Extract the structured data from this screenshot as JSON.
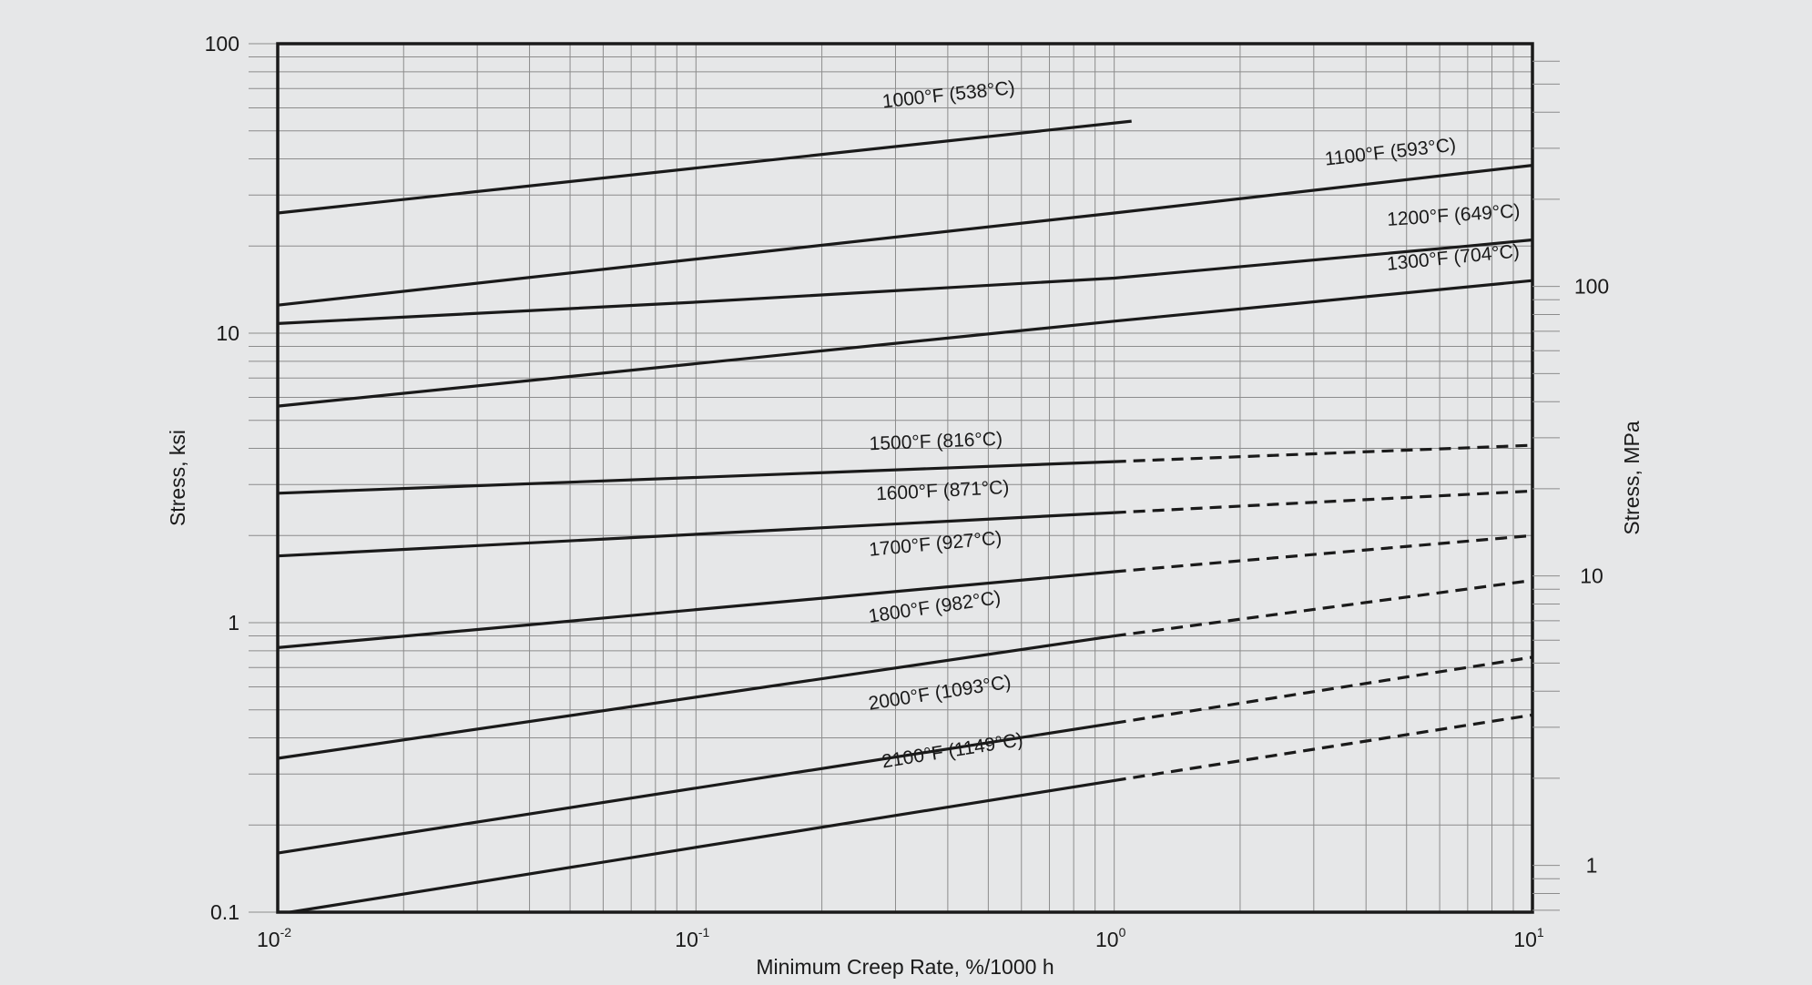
{
  "chart_data": {
    "type": "line",
    "x_scale": "log",
    "y_scale": "log",
    "x_label": "Minimum Creep Rate, %/1000 h",
    "y_label": "Stress, ksi",
    "y2_label": "Stress, MPa",
    "xlim": [
      0.01,
      10
    ],
    "ylim": [
      0.1,
      100
    ],
    "grid": true,
    "legend": "inline labels on lines",
    "x_ticks": [
      {
        "value": 0.01,
        "base": "10",
        "exp": "-2"
      },
      {
        "value": 0.1,
        "base": "10",
        "exp": "-1"
      },
      {
        "value": 1,
        "base": "10",
        "exp": "0"
      },
      {
        "value": 10,
        "base": "10",
        "exp": "1"
      }
    ],
    "y_ticks": [
      {
        "value": 0.1,
        "label": "0.1"
      },
      {
        "value": 1,
        "label": "1"
      },
      {
        "value": 10,
        "label": "10"
      },
      {
        "value": 100,
        "label": "100"
      }
    ],
    "y2_ticks": [
      {
        "value": 1,
        "label": "1"
      },
      {
        "value": 10,
        "label": "10"
      },
      {
        "value": 100,
        "label": "100"
      }
    ],
    "series": [
      {
        "name": "1000°F (538°C)",
        "solid": [
          [
            0.01,
            26
          ],
          [
            1.1,
            54
          ]
        ],
        "dashed": []
      },
      {
        "name": "1100°F (593°C)",
        "solid": [
          [
            0.01,
            12.5
          ],
          [
            1,
            26
          ],
          [
            10,
            38
          ]
        ],
        "dashed": []
      },
      {
        "name": "1200°F (649°C)",
        "solid": [
          [
            0.01,
            10.8
          ],
          [
            0.1,
            12.8
          ],
          [
            1,
            15.5
          ],
          [
            7,
            20
          ],
          [
            10,
            21
          ]
        ],
        "dashed": []
      },
      {
        "name": "1300°F (704°C)",
        "solid": [
          [
            0.01,
            5.6
          ],
          [
            1,
            11
          ],
          [
            10,
            15.2
          ]
        ],
        "dashed": []
      },
      {
        "name": "1500°F (816°C)",
        "solid": [
          [
            0.01,
            2.8
          ],
          [
            1,
            3.6
          ]
        ],
        "dashed": [
          [
            1,
            3.6
          ],
          [
            10,
            4.1
          ]
        ]
      },
      {
        "name": "1600°F (871°C)",
        "solid": [
          [
            0.01,
            1.7
          ],
          [
            1,
            2.4
          ]
        ],
        "dashed": [
          [
            1,
            2.4
          ],
          [
            10,
            2.85
          ]
        ]
      },
      {
        "name": "1700°F (927°C)",
        "solid": [
          [
            0.01,
            0.82
          ],
          [
            1,
            1.5
          ]
        ],
        "dashed": [
          [
            1,
            1.5
          ],
          [
            10,
            2.0
          ]
        ]
      },
      {
        "name": "1800°F (982°C)",
        "solid": [
          [
            0.01,
            0.34
          ],
          [
            1,
            0.9
          ]
        ],
        "dashed": [
          [
            1,
            0.9
          ],
          [
            10,
            1.4
          ]
        ]
      },
      {
        "name": "2000°F (1093°C)",
        "solid": [
          [
            0.01,
            0.16
          ],
          [
            1,
            0.45
          ]
        ],
        "dashed": [
          [
            1,
            0.45
          ],
          [
            10,
            0.76
          ]
        ]
      },
      {
        "name": "2100°F (1149°C)",
        "solid": [
          [
            0.0107,
            0.1
          ],
          [
            1,
            0.285
          ]
        ],
        "dashed": [
          [
            1,
            0.285
          ],
          [
            10,
            0.48
          ]
        ]
      }
    ],
    "label_anchors": [
      [
        0.28,
        60
      ],
      [
        3.2,
        38
      ],
      [
        4.5,
        23.5
      ],
      [
        4.5,
        16.5
      ],
      [
        0.26,
        3.95
      ],
      [
        0.27,
        2.65
      ],
      [
        0.26,
        1.7
      ],
      [
        0.26,
        1.0
      ],
      [
        0.26,
        0.5
      ],
      [
        0.28,
        0.315
      ]
    ]
  }
}
